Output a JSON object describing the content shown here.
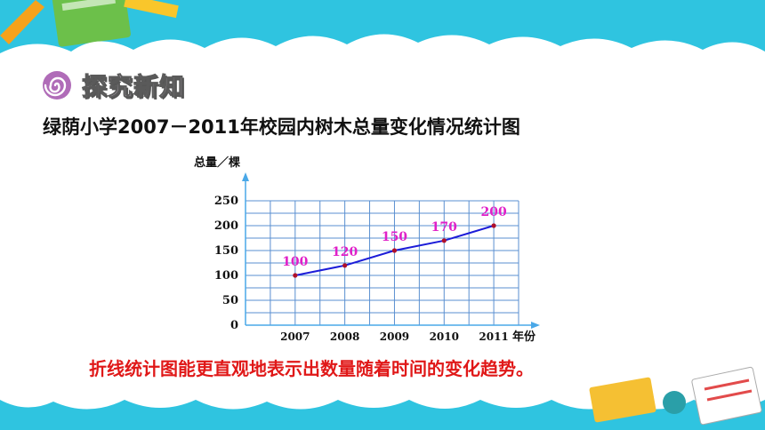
{
  "section": {
    "title": "探究新知",
    "icon": "spiral-icon"
  },
  "chart_data": {
    "type": "line",
    "title": "绿荫小学2007－2011年校园内树木总量变化情况统计图",
    "xlabel": "年份",
    "ylabel": "总量／棵",
    "categories": [
      "2007",
      "2008",
      "2009",
      "2010",
      "2011"
    ],
    "values": [
      100,
      120,
      150,
      170,
      200
    ],
    "yticks": [
      0,
      50,
      100,
      150,
      200,
      250
    ],
    "ylim": [
      0,
      250
    ],
    "grid": true,
    "data_labels": [
      "100",
      "120",
      "150",
      "170",
      "200"
    ],
    "colors": {
      "line": "#1c1cd8",
      "point": "#b0102a",
      "label": "#e020c8",
      "grid": "#5a8fd0",
      "axis": "#4aa8e8"
    }
  },
  "conclusion": "折线统计图能更直观地表示出数量随着时间的变化趋势。"
}
